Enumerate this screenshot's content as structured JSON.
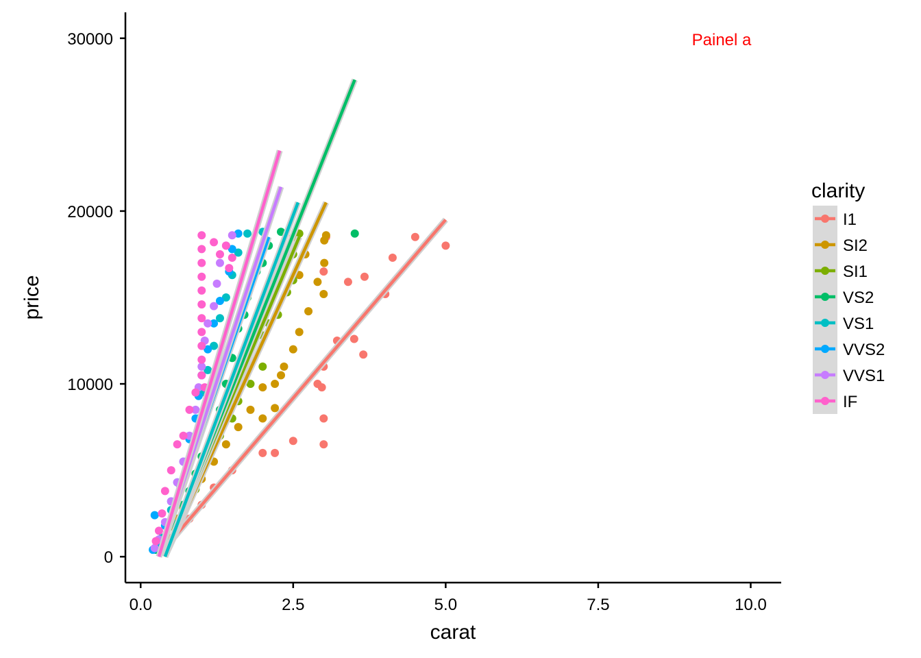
{
  "chart_data": {
    "type": "scatter",
    "annotation": {
      "text": "Painel a",
      "color": "#FF0000"
    },
    "xlabel": "carat",
    "ylabel": "price",
    "xlim": [
      -0.25,
      10.5
    ],
    "ylim": [
      -1500,
      31500
    ],
    "x_ticks": [
      0.0,
      2.5,
      5.0,
      7.5,
      10.0
    ],
    "x_tick_labels": [
      "0.0",
      "2.5",
      "5.0",
      "7.5",
      "10.0"
    ],
    "y_ticks": [
      0,
      10000,
      20000,
      30000
    ],
    "y_tick_labels": [
      "0",
      "10000",
      "20000",
      "30000"
    ],
    "grid": false,
    "legend": {
      "title": "clarity",
      "placement": "right"
    },
    "series": [
      {
        "name": "I1",
        "color": "#F8766D",
        "fit": {
          "x": [
            0.3,
            5.0
          ],
          "y": [
            100,
            19500
          ]
        },
        "points": [
          [
            5.0,
            18000
          ],
          [
            4.5,
            18500
          ],
          [
            4.13,
            17300
          ],
          [
            4.01,
            15200
          ],
          [
            3.65,
            11700
          ],
          [
            3.67,
            16200
          ],
          [
            3.4,
            15900
          ],
          [
            3.22,
            12500
          ],
          [
            3.5,
            12600
          ],
          [
            3.04,
            18500
          ],
          [
            3.0,
            16500
          ],
          [
            3.0,
            11000
          ],
          [
            2.97,
            9800
          ],
          [
            2.9,
            10000
          ],
          [
            3.0,
            8000
          ],
          [
            3.0,
            6500
          ],
          [
            2.5,
            6700
          ],
          [
            2.0,
            6000
          ],
          [
            2.2,
            6000
          ],
          [
            1.5,
            5000
          ],
          [
            1.2,
            4000
          ],
          [
            1.0,
            3000
          ],
          [
            0.8,
            2200
          ],
          [
            0.6,
            1500
          ],
          [
            0.5,
            1000
          ]
        ]
      },
      {
        "name": "SI2",
        "color": "#CD9600",
        "fit": {
          "x": [
            0.4,
            3.04
          ],
          "y": [
            0,
            20500
          ]
        },
        "points": [
          [
            3.04,
            18600
          ],
          [
            3.01,
            18300
          ],
          [
            3.01,
            17000
          ],
          [
            2.9,
            15900
          ],
          [
            3.0,
            15200
          ],
          [
            2.75,
            14200
          ],
          [
            2.6,
            13000
          ],
          [
            2.5,
            12000
          ],
          [
            2.35,
            11000
          ],
          [
            2.3,
            10500
          ],
          [
            2.2,
            10000
          ],
          [
            2.0,
            9800
          ],
          [
            1.8,
            8500
          ],
          [
            1.6,
            7500
          ],
          [
            1.4,
            6500
          ],
          [
            1.2,
            5500
          ],
          [
            1.0,
            4500
          ],
          [
            0.8,
            3500
          ],
          [
            0.6,
            2200
          ],
          [
            0.45,
            1100
          ],
          [
            0.3,
            500
          ],
          [
            2.5,
            18500
          ],
          [
            2.7,
            17500
          ],
          [
            2.6,
            16300
          ],
          [
            2.2,
            8600
          ],
          [
            2.0,
            8000
          ]
        ]
      },
      {
        "name": "SI1",
        "color": "#7CAE00",
        "fit": {
          "x": [
            0.4,
            2.6
          ],
          "y": [
            0,
            18500
          ]
        },
        "points": [
          [
            2.6,
            18700
          ],
          [
            2.5,
            17500
          ],
          [
            2.5,
            16000
          ],
          [
            2.25,
            14000
          ],
          [
            2.0,
            12800
          ],
          [
            2.0,
            11000
          ],
          [
            1.8,
            10000
          ],
          [
            1.6,
            9000
          ],
          [
            1.5,
            8000
          ],
          [
            1.3,
            7000
          ],
          [
            1.1,
            5800
          ],
          [
            1.0,
            4800
          ],
          [
            0.9,
            3900
          ],
          [
            0.7,
            2800
          ],
          [
            0.55,
            1700
          ],
          [
            0.4,
            700
          ],
          [
            2.4,
            15300
          ],
          [
            2.1,
            13500
          ]
        ]
      },
      {
        "name": "VS2",
        "color": "#00BE67",
        "fit": {
          "x": [
            0.4,
            3.51
          ],
          "y": [
            0,
            27600
          ]
        },
        "points": [
          [
            3.51,
            18700
          ],
          [
            2.3,
            18800
          ],
          [
            2.1,
            18000
          ],
          [
            2.0,
            17000
          ],
          [
            1.75,
            15000
          ],
          [
            1.6,
            13200
          ],
          [
            1.5,
            11500
          ],
          [
            1.4,
            10000
          ],
          [
            1.3,
            8500
          ],
          [
            1.2,
            7000
          ],
          [
            1.0,
            5800
          ],
          [
            0.9,
            4800
          ],
          [
            0.8,
            3800
          ],
          [
            0.7,
            3000
          ],
          [
            0.55,
            1900
          ],
          [
            0.4,
            900
          ],
          [
            0.25,
            400
          ],
          [
            1.9,
            16500
          ],
          [
            1.7,
            14000
          ]
        ]
      },
      {
        "name": "VS1",
        "color": "#00BFC4",
        "fit": {
          "x": [
            0.4,
            2.58
          ],
          "y": [
            0,
            20500
          ]
        },
        "points": [
          [
            2.0,
            18800
          ],
          [
            1.75,
            18700
          ],
          [
            1.6,
            17600
          ],
          [
            1.5,
            16300
          ],
          [
            1.4,
            15000
          ],
          [
            1.3,
            13800
          ],
          [
            1.2,
            12200
          ],
          [
            1.1,
            10800
          ],
          [
            1.0,
            9500
          ],
          [
            0.95,
            8000
          ],
          [
            0.85,
            6800
          ],
          [
            0.75,
            5500
          ],
          [
            0.65,
            4100
          ],
          [
            0.5,
            2700
          ],
          [
            0.35,
            1100
          ],
          [
            0.25,
            500
          ],
          [
            2.4,
            17300
          ],
          [
            2.2,
            16500
          ]
        ]
      },
      {
        "name": "VVS2",
        "color": "#00A9FF",
        "fit": {
          "x": [
            0.3,
            2.1
          ],
          "y": [
            0,
            18500
          ]
        },
        "points": [
          [
            1.6,
            18700
          ],
          [
            1.5,
            17800
          ],
          [
            1.45,
            16500
          ],
          [
            1.3,
            14800
          ],
          [
            1.2,
            13500
          ],
          [
            1.1,
            12000
          ],
          [
            1.0,
            10500
          ],
          [
            0.95,
            9300
          ],
          [
            0.9,
            8000
          ],
          [
            0.8,
            6800
          ],
          [
            0.7,
            5500
          ],
          [
            0.6,
            4300
          ],
          [
            0.5,
            3200
          ],
          [
            0.4,
            1800
          ],
          [
            0.3,
            900
          ],
          [
            0.23,
            2400
          ],
          [
            0.2,
            400
          ]
        ]
      },
      {
        "name": "VVS1",
        "color": "#C77CFF",
        "fit": {
          "x": [
            0.3,
            2.3
          ],
          "y": [
            0,
            21400
          ]
        },
        "points": [
          [
            1.5,
            18600
          ],
          [
            1.4,
            18000
          ],
          [
            1.3,
            17000
          ],
          [
            1.25,
            15800
          ],
          [
            1.2,
            14500
          ],
          [
            1.1,
            13500
          ],
          [
            1.05,
            12500
          ],
          [
            1.0,
            11000
          ],
          [
            0.95,
            9800
          ],
          [
            0.9,
            8500
          ],
          [
            0.8,
            7000
          ],
          [
            0.7,
            5500
          ],
          [
            0.6,
            4300
          ],
          [
            0.5,
            3200
          ],
          [
            0.4,
            2000
          ],
          [
            0.3,
            1000
          ],
          [
            0.23,
            500
          ]
        ]
      },
      {
        "name": "IF",
        "color": "#FF61CC",
        "fit": {
          "x": [
            0.3,
            2.28
          ],
          "y": [
            0,
            23500
          ]
        },
        "points": [
          [
            1.0,
            18600
          ],
          [
            1.0,
            17800
          ],
          [
            1.0,
            17000
          ],
          [
            1.0,
            16200
          ],
          [
            1.0,
            15400
          ],
          [
            1.0,
            14600
          ],
          [
            1.0,
            13800
          ],
          [
            1.0,
            13000
          ],
          [
            1.0,
            12200
          ],
          [
            1.0,
            11400
          ],
          [
            1.0,
            10500
          ],
          [
            1.05,
            9800
          ],
          [
            1.1,
            9300
          ],
          [
            1.2,
            18200
          ],
          [
            1.3,
            17500
          ],
          [
            1.4,
            18000
          ],
          [
            0.9,
            9500
          ],
          [
            0.8,
            8500
          ],
          [
            0.7,
            7000
          ],
          [
            0.6,
            6500
          ],
          [
            0.5,
            5000
          ],
          [
            0.4,
            3800
          ],
          [
            0.35,
            2500
          ],
          [
            0.3,
            1500
          ],
          [
            0.25,
            900
          ],
          [
            1.5,
            17300
          ],
          [
            1.45,
            16700
          ]
        ]
      }
    ]
  }
}
